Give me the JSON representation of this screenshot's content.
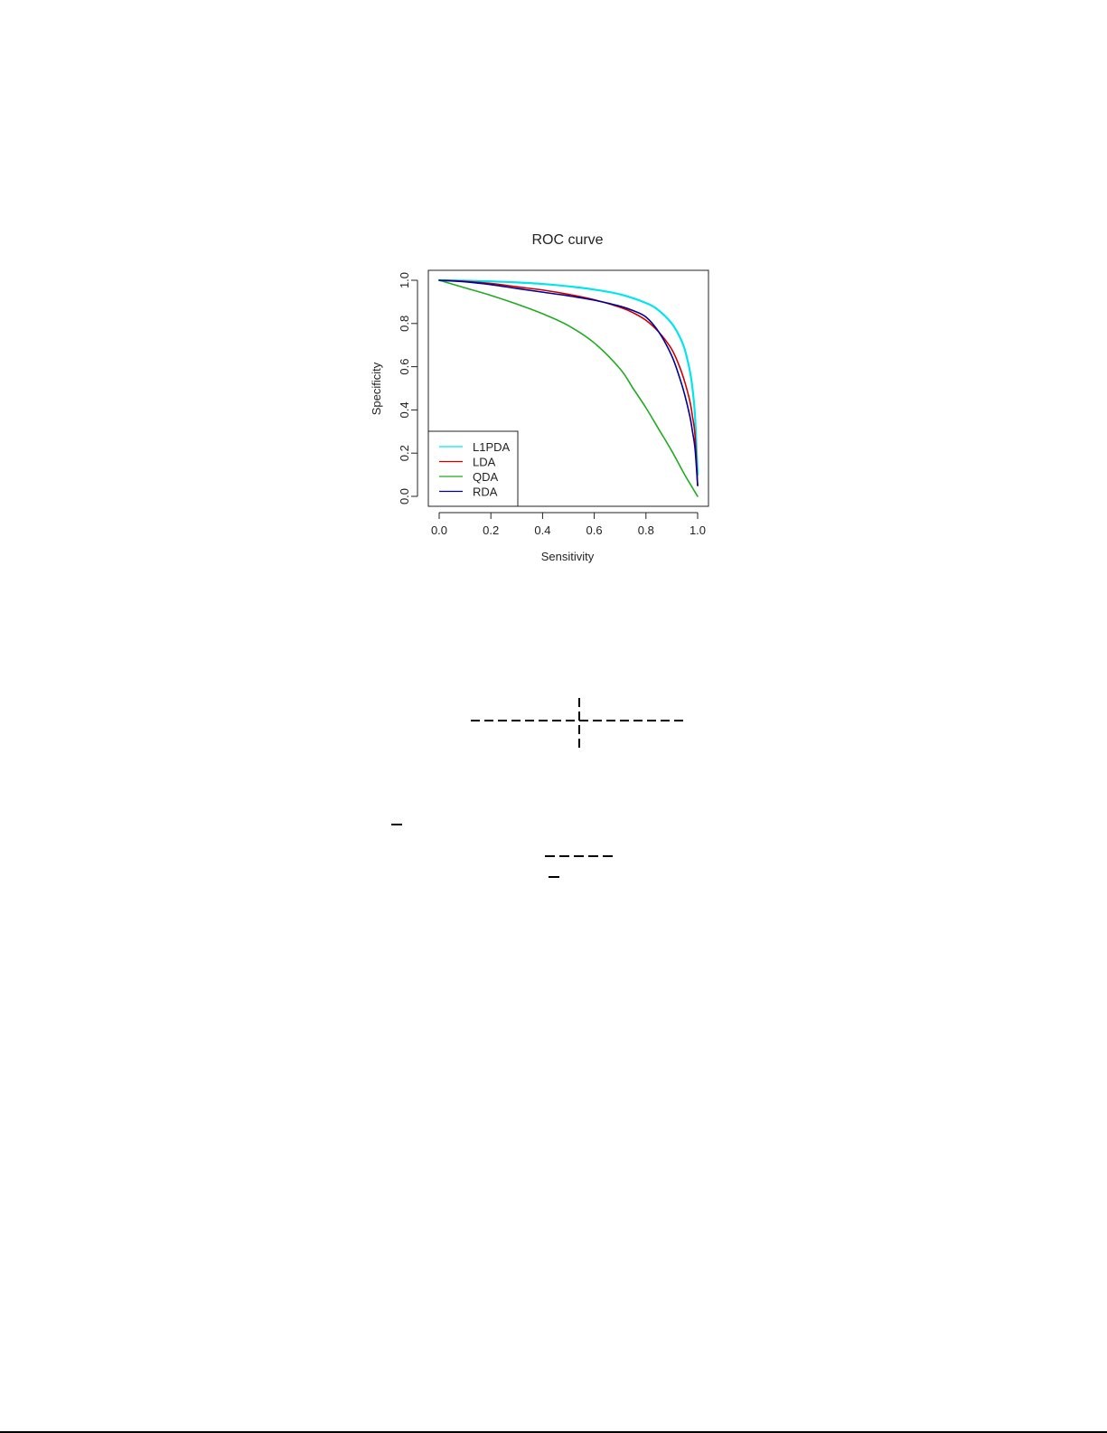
{
  "chart_data": {
    "type": "line",
    "title": "ROC curve",
    "xlabel": "Sensitivity",
    "ylabel": "Specificity",
    "xlim": [
      0,
      1
    ],
    "ylim": [
      0,
      1
    ],
    "xticks": [
      "0.0",
      "0.2",
      "0.4",
      "0.6",
      "0.8",
      "1.0"
    ],
    "yticks": [
      "0.0",
      "0.2",
      "0.4",
      "0.6",
      "0.8",
      "1.0"
    ],
    "grid": false,
    "legend_position": "bottom-left",
    "series": [
      {
        "name": "L1PDA",
        "color": "#00e5ee",
        "x": [
          0,
          0.1,
          0.2,
          0.3,
          0.4,
          0.5,
          0.6,
          0.7,
          0.8,
          0.85,
          0.9,
          0.93,
          0.95,
          0.97,
          0.98,
          0.99,
          1.0
        ],
        "y": [
          1.0,
          0.998,
          0.995,
          0.99,
          0.983,
          0.972,
          0.957,
          0.935,
          0.895,
          0.86,
          0.8,
          0.74,
          0.68,
          0.58,
          0.5,
          0.37,
          0.1
        ]
      },
      {
        "name": "LDA",
        "color": "#cc0000",
        "x": [
          0,
          0.1,
          0.2,
          0.3,
          0.4,
          0.5,
          0.6,
          0.7,
          0.75,
          0.8,
          0.85,
          0.9,
          0.93,
          0.95,
          0.97,
          0.98,
          0.99,
          1.0
        ],
        "y": [
          1.0,
          0.995,
          0.985,
          0.97,
          0.955,
          0.935,
          0.91,
          0.875,
          0.85,
          0.815,
          0.76,
          0.68,
          0.6,
          0.53,
          0.44,
          0.37,
          0.28,
          0.05
        ]
      },
      {
        "name": "QDA",
        "color": "#22aa22",
        "x": [
          0,
          0.1,
          0.2,
          0.3,
          0.4,
          0.5,
          0.6,
          0.7,
          0.75,
          0.8,
          0.85,
          0.9,
          0.95,
          1.0
        ],
        "y": [
          1.0,
          0.965,
          0.93,
          0.89,
          0.845,
          0.79,
          0.71,
          0.59,
          0.5,
          0.41,
          0.31,
          0.21,
          0.1,
          0.0
        ]
      },
      {
        "name": "RDA",
        "color": "#000099",
        "x": [
          0,
          0.1,
          0.2,
          0.3,
          0.4,
          0.5,
          0.6,
          0.7,
          0.75,
          0.8,
          0.85,
          0.9,
          0.93,
          0.95,
          0.97,
          0.98,
          0.99,
          1.0
        ],
        "y": [
          1.0,
          0.993,
          0.98,
          0.962,
          0.945,
          0.928,
          0.908,
          0.88,
          0.86,
          0.83,
          0.76,
          0.65,
          0.55,
          0.47,
          0.37,
          0.3,
          0.22,
          0.05
        ]
      }
    ]
  }
}
